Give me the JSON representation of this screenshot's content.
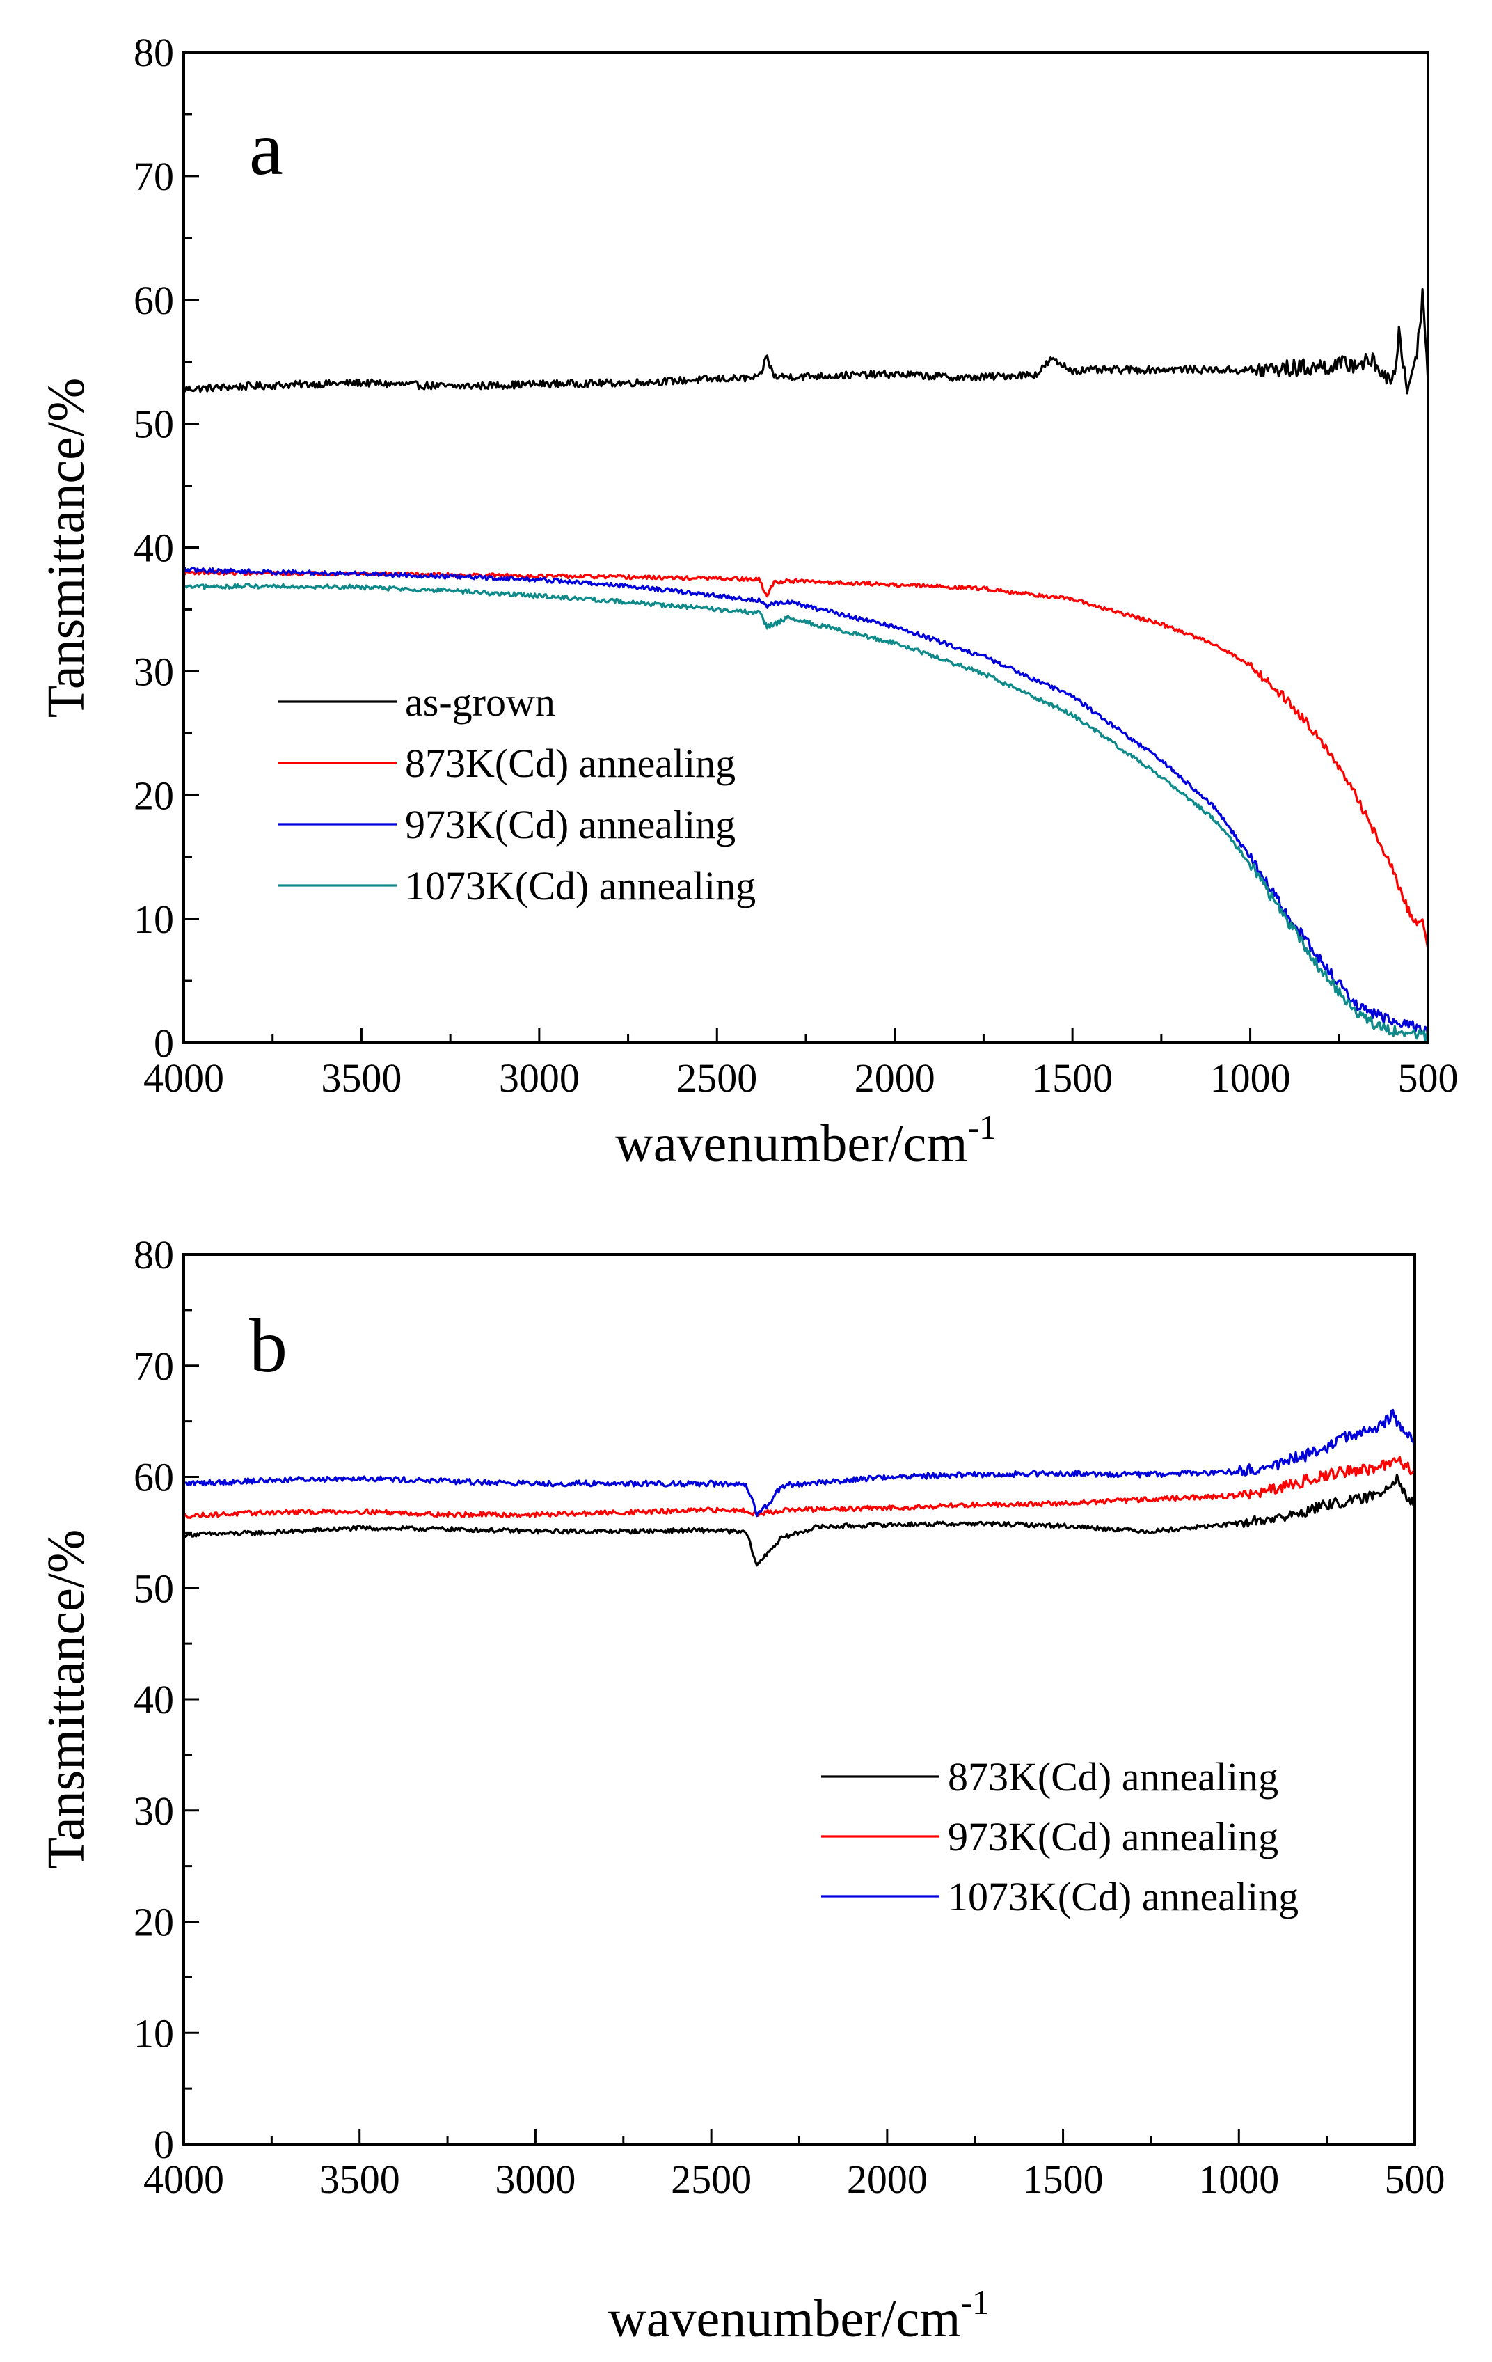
{
  "figure": {
    "title": ""
  },
  "chart_data": [
    {
      "panel": "a",
      "type": "line",
      "panel_label": "a",
      "xlabel": "wavenumber/cm",
      "xlabel_superscript": "-1",
      "ylabel": "Tansmittance/%",
      "xlim": [
        4000,
        500
      ],
      "ylim": [
        0,
        80
      ],
      "x_reversed": true,
      "xticks": [
        4000,
        3500,
        3000,
        2500,
        2000,
        1500,
        1000,
        500
      ],
      "yticks": [
        0,
        10,
        20,
        30,
        40,
        50,
        60,
        70,
        80
      ],
      "legend_position": "center-left",
      "series": [
        {
          "name": "as-grown",
          "color": "#000000",
          "noise": 0.3,
          "points": [
            [
              4000,
              52.8
            ],
            [
              3750,
              53.1
            ],
            [
              3500,
              53.3
            ],
            [
              3250,
              53.0
            ],
            [
              3000,
              53.2
            ],
            [
              2750,
              53.3
            ],
            [
              2500,
              53.6
            ],
            [
              2380,
              53.7
            ],
            [
              2360,
              55.5
            ],
            [
              2340,
              53.8
            ],
            [
              2300,
              53.8
            ],
            [
              2000,
              54.0
            ],
            [
              1800,
              53.7
            ],
            [
              1600,
              54.0
            ],
            [
              1560,
              55.2
            ],
            [
              1500,
              54.3
            ],
            [
              1200,
              54.4
            ],
            [
              1000,
              54.3
            ],
            [
              800,
              54.6
            ],
            [
              650,
              55.0
            ],
            [
              600,
              53.0
            ],
            [
              580,
              57.5
            ],
            [
              560,
              52.5
            ],
            [
              530,
              56.0
            ],
            [
              515,
              60.5
            ],
            [
              500,
              54.0
            ]
          ]
        },
        {
          "name": "873K(Cd) annealing",
          "color": "#ff0000",
          "noise": 0.15,
          "points": [
            [
              4000,
              38.0
            ],
            [
              3750,
              37.9
            ],
            [
              3500,
              37.9
            ],
            [
              3000,
              37.7
            ],
            [
              2500,
              37.5
            ],
            [
              2380,
              37.4
            ],
            [
              2360,
              36.0
            ],
            [
              2340,
              37.2
            ],
            [
              2300,
              37.3
            ],
            [
              2000,
              37.0
            ],
            [
              1750,
              36.7
            ],
            [
              1500,
              35.8
            ],
            [
              1250,
              33.8
            ],
            [
              1100,
              32.2
            ],
            [
              1000,
              30.5
            ],
            [
              900,
              27.8
            ],
            [
              800,
              24.5
            ],
            [
              700,
              19.8
            ],
            [
              650,
              17.0
            ],
            [
              600,
              14.0
            ],
            [
              560,
              11.0
            ],
            [
              530,
              9.5
            ],
            [
              515,
              10.0
            ],
            [
              500,
              7.5
            ]
          ]
        },
        {
          "name": "973K(Cd) annealing",
          "color": "#0000dd",
          "noise": 0.18,
          "points": [
            [
              4000,
              38.2
            ],
            [
              3750,
              38.0
            ],
            [
              3500,
              37.9
            ],
            [
              3000,
              37.4
            ],
            [
              2750,
              36.9
            ],
            [
              2500,
              36.1
            ],
            [
              2380,
              35.7
            ],
            [
              2360,
              35.2
            ],
            [
              2340,
              35.5
            ],
            [
              2300,
              35.6
            ],
            [
              2000,
              33.6
            ],
            [
              1750,
              31.2
            ],
            [
              1500,
              28.0
            ],
            [
              1250,
              22.8
            ],
            [
              1100,
              19.0
            ],
            [
              1000,
              15.0
            ],
            [
              900,
              10.5
            ],
            [
              800,
              6.5
            ],
            [
              700,
              3.0
            ],
            [
              650,
              2.3
            ],
            [
              600,
              1.8
            ],
            [
              560,
              1.6
            ],
            [
              530,
              1.2
            ],
            [
              500,
              1.0
            ]
          ]
        },
        {
          "name": "1073K(Cd) annealing",
          "color": "#0f8a8a",
          "noise": 0.18,
          "points": [
            [
              4000,
              36.8
            ],
            [
              3750,
              36.9
            ],
            [
              3500,
              36.8
            ],
            [
              3250,
              36.5
            ],
            [
              3000,
              36.1
            ],
            [
              2750,
              35.6
            ],
            [
              2500,
              35.0
            ],
            [
              2380,
              34.7
            ],
            [
              2360,
              33.6
            ],
            [
              2340,
              33.8
            ],
            [
              2300,
              34.3
            ],
            [
              2000,
              32.3
            ],
            [
              1750,
              29.8
            ],
            [
              1500,
              26.5
            ],
            [
              1250,
              21.5
            ],
            [
              1100,
              18.0
            ],
            [
              1000,
              14.5
            ],
            [
              900,
              10.0
            ],
            [
              800,
              5.8
            ],
            [
              700,
              2.5
            ],
            [
              650,
              1.5
            ],
            [
              600,
              1.0
            ],
            [
              560,
              0.8
            ],
            [
              500,
              0.5
            ]
          ]
        }
      ]
    },
    {
      "panel": "b",
      "type": "line",
      "panel_label": "b",
      "xlabel": "wavenumber/cm",
      "xlabel_superscript": "-1",
      "ylabel": "Tansmittance/%",
      "xlim": [
        4000,
        500
      ],
      "ylim": [
        0,
        80
      ],
      "x_reversed": true,
      "xticks": [
        4000,
        3500,
        3000,
        2500,
        2000,
        1500,
        1000,
        500
      ],
      "yticks": [
        0,
        10,
        20,
        30,
        40,
        50,
        60,
        70,
        80
      ],
      "legend_position": "center-right",
      "series": [
        {
          "name": "873K(Cd) annealing",
          "color": "#000000",
          "noise": 0.2,
          "points": [
            [
              4000,
              54.8
            ],
            [
              3750,
              55.0
            ],
            [
              3500,
              55.4
            ],
            [
              3250,
              55.3
            ],
            [
              3000,
              55.1
            ],
            [
              2750,
              55.1
            ],
            [
              2500,
              55.2
            ],
            [
              2400,
              55.0
            ],
            [
              2370,
              52.0
            ],
            [
              2340,
              53.2
            ],
            [
              2300,
              54.5
            ],
            [
              2200,
              55.5
            ],
            [
              2000,
              55.7
            ],
            [
              1750,
              55.8
            ],
            [
              1500,
              55.6
            ],
            [
              1250,
              55.1
            ],
            [
              1000,
              55.8
            ],
            [
              850,
              56.5
            ],
            [
              750,
              57.5
            ],
            [
              650,
              58.0
            ],
            [
              600,
              58.5
            ],
            [
              550,
              60.0
            ],
            [
              520,
              58.0
            ],
            [
              500,
              57.5
            ]
          ]
        },
        {
          "name": "973K(Cd) annealing",
          "color": "#ff0000",
          "noise": 0.22,
          "points": [
            [
              4000,
              56.5
            ],
            [
              3750,
              56.8
            ],
            [
              3500,
              56.9
            ],
            [
              3250,
              56.6
            ],
            [
              3000,
              56.6
            ],
            [
              2750,
              56.8
            ],
            [
              2500,
              57.0
            ],
            [
              2400,
              57.0
            ],
            [
              2370,
              56.6
            ],
            [
              2340,
              56.8
            ],
            [
              2300,
              57.0
            ],
            [
              2000,
              57.2
            ],
            [
              1750,
              57.5
            ],
            [
              1500,
              57.6
            ],
            [
              1250,
              58.0
            ],
            [
              1000,
              58.3
            ],
            [
              900,
              58.8
            ],
            [
              800,
              59.8
            ],
            [
              700,
              60.5
            ],
            [
              600,
              60.8
            ],
            [
              550,
              61.5
            ],
            [
              500,
              60.5
            ]
          ]
        },
        {
          "name": "1073K(Cd) annealing",
          "color": "#0000dd",
          "noise": 0.25,
          "points": [
            [
              4000,
              59.4
            ],
            [
              3750,
              59.7
            ],
            [
              3500,
              59.9
            ],
            [
              3250,
              59.6
            ],
            [
              3000,
              59.4
            ],
            [
              2750,
              59.4
            ],
            [
              2500,
              59.4
            ],
            [
              2400,
              59.2
            ],
            [
              2370,
              56.6
            ],
            [
              2340,
              57.5
            ],
            [
              2300,
              59.2
            ],
            [
              2000,
              60.0
            ],
            [
              1750,
              60.2
            ],
            [
              1500,
              60.3
            ],
            [
              1250,
              60.2
            ],
            [
              1000,
              60.5
            ],
            [
              900,
              61.0
            ],
            [
              800,
              62.0
            ],
            [
              700,
              63.5
            ],
            [
              600,
              64.5
            ],
            [
              560,
              65.5
            ],
            [
              530,
              64.0
            ],
            [
              500,
              63.0
            ]
          ]
        }
      ]
    }
  ]
}
